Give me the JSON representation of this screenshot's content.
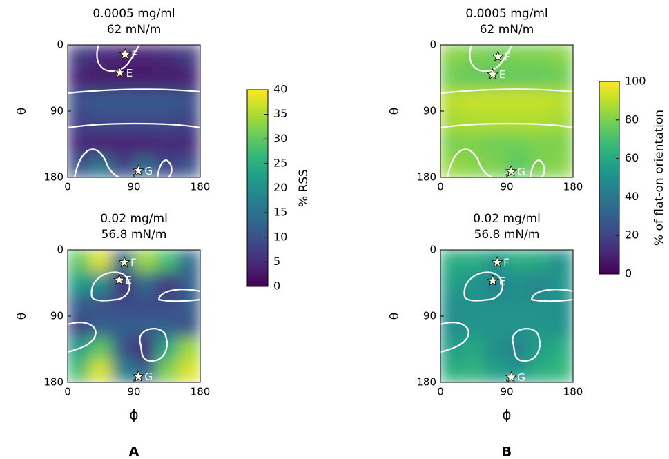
{
  "chart_data": [
    {
      "type": "heatmap",
      "title": [
        "0.0005 mg/ml",
        "62 mN/m"
      ],
      "ylabel": "θ",
      "xlim": [
        0,
        180
      ],
      "ylim": [
        0,
        180
      ],
      "y_inverted": true,
      "xticks": [
        0,
        90,
        180
      ],
      "yticks": [
        0,
        90,
        180
      ],
      "x": [
        15,
        45,
        75,
        105,
        135,
        165
      ],
      "y": [
        15,
        45,
        75,
        105,
        135,
        165
      ],
      "z": [
        [
          7,
          5,
          4,
          4,
          5,
          7
        ],
        [
          4,
          3,
          3,
          3,
          3,
          4
        ],
        [
          10,
          11,
          11,
          11,
          11,
          10
        ],
        [
          8,
          9,
          9,
          9,
          9,
          8
        ],
        [
          5,
          4,
          4,
          4,
          5,
          5
        ],
        [
          10,
          16,
          8,
          14,
          8,
          10
        ]
      ],
      "markers": [
        {
          "label": "F",
          "x": 78,
          "y": 13
        },
        {
          "label": "E",
          "x": 71,
          "y": 38
        },
        {
          "label": "G",
          "x": 96,
          "y": 171
        }
      ],
      "colorbar": {
        "label": "% RSS",
        "zlim": [
          0,
          40
        ],
        "zticks": [
          0,
          5,
          10,
          15,
          20,
          25,
          30,
          35,
          40
        ]
      }
    },
    {
      "type": "heatmap",
      "title": [
        "0.02 mg/ml",
        "56.8 mN/m"
      ],
      "ylabel": "θ",
      "xlabel": "ϕ",
      "panel_label": "A",
      "xlim": [
        0,
        180
      ],
      "ylim": [
        0,
        180
      ],
      "y_inverted": true,
      "xticks": [
        0,
        90,
        180
      ],
      "yticks": [
        0,
        90,
        180
      ],
      "x": [
        15,
        45,
        75,
        105,
        135,
        165
      ],
      "y": [
        15,
        45,
        75,
        105,
        135,
        165
      ],
      "z": [
        [
          30,
          38,
          14,
          34,
          28,
          14
        ],
        [
          22,
          20,
          5,
          14,
          6,
          12
        ],
        [
          12,
          10,
          9,
          9,
          9,
          12
        ],
        [
          8,
          12,
          12,
          12,
          12,
          10
        ],
        [
          22,
          30,
          10,
          5,
          24,
          34
        ],
        [
          28,
          38,
          18,
          12,
          32,
          38
        ]
      ],
      "markers": [
        {
          "label": "F",
          "x": 77,
          "y": 17
        },
        {
          "label": "E",
          "x": 70,
          "y": 41
        },
        {
          "label": "G",
          "x": 96,
          "y": 172
        }
      ]
    },
    {
      "type": "heatmap",
      "title": [
        "0.0005 mg/ml",
        "62 mN/m"
      ],
      "ylabel": "θ",
      "xlim": [
        0,
        180
      ],
      "ylim": [
        0,
        180
      ],
      "y_inverted": true,
      "xticks": [
        0,
        90,
        180
      ],
      "yticks": [
        0,
        90,
        180
      ],
      "x": [
        15,
        45,
        75,
        105,
        135,
        165
      ],
      "y": [
        15,
        45,
        75,
        105,
        135,
        165
      ],
      "z": [
        [
          82,
          80,
          78,
          80,
          80,
          82
        ],
        [
          78,
          76,
          76,
          76,
          76,
          78
        ],
        [
          90,
          92,
          92,
          92,
          92,
          90
        ],
        [
          86,
          88,
          88,
          88,
          88,
          86
        ],
        [
          80,
          80,
          78,
          78,
          80,
          80
        ],
        [
          84,
          82,
          80,
          74,
          80,
          82
        ]
      ],
      "markers": [
        {
          "label": "F",
          "x": 78,
          "y": 16
        },
        {
          "label": "E",
          "x": 71,
          "y": 40
        },
        {
          "label": "G",
          "x": 96,
          "y": 172
        }
      ],
      "colorbar": {
        "label": "% of flat-on orientation",
        "zlim": [
          0,
          100
        ],
        "zticks": [
          0,
          20,
          40,
          60,
          80,
          100
        ]
      }
    },
    {
      "type": "heatmap",
      "title": [
        "0.02 mg/ml",
        "56.8 mN/m"
      ],
      "ylabel": "θ",
      "xlabel": "ϕ",
      "panel_label": "B",
      "xlim": [
        0,
        180
      ],
      "ylim": [
        0,
        180
      ],
      "y_inverted": true,
      "xticks": [
        0,
        90,
        180
      ],
      "yticks": [
        0,
        90,
        180
      ],
      "x": [
        15,
        45,
        75,
        105,
        135,
        165
      ],
      "y": [
        15,
        45,
        75,
        105,
        135,
        165
      ],
      "z": [
        [
          62,
          62,
          52,
          62,
          60,
          50
        ],
        [
          56,
          52,
          44,
          50,
          46,
          52
        ],
        [
          50,
          50,
          50,
          50,
          50,
          50
        ],
        [
          48,
          52,
          52,
          52,
          52,
          50
        ],
        [
          56,
          60,
          50,
          44,
          56,
          62
        ],
        [
          62,
          64,
          56,
          52,
          62,
          66
        ]
      ],
      "markers": [
        {
          "label": "F",
          "x": 77,
          "y": 17
        },
        {
          "label": "E",
          "x": 71,
          "y": 42
        },
        {
          "label": "G",
          "x": 96,
          "y": 173
        }
      ]
    }
  ]
}
